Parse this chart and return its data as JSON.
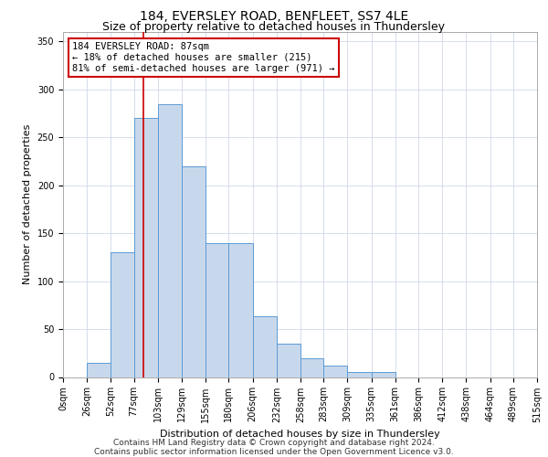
{
  "title": "184, EVERSLEY ROAD, BENFLEET, SS7 4LE",
  "subtitle": "Size of property relative to detached houses in Thundersley",
  "xlabel": "Distribution of detached houses by size in Thundersley",
  "ylabel": "Number of detached properties",
  "footer_line1": "Contains HM Land Registry data © Crown copyright and database right 2024.",
  "footer_line2": "Contains public sector information licensed under the Open Government Licence v3.0.",
  "bar_edges": [
    0,
    26,
    52,
    77,
    103,
    129,
    155,
    180,
    206,
    232,
    258,
    283,
    309,
    335,
    361,
    386,
    412,
    438,
    464,
    489,
    515
  ],
  "bar_heights": [
    0,
    15,
    130,
    270,
    285,
    220,
    140,
    140,
    63,
    35,
    20,
    12,
    5,
    5,
    0,
    0,
    0,
    0,
    0,
    0
  ],
  "bar_color": "#c8d8ec",
  "bar_edge_color": "#5b9bd5",
  "grid_color": "#d0d8e8",
  "vline_x": 87,
  "vline_color": "#cc0000",
  "annotation_text": "184 EVERSLEY ROAD: 87sqm\n← 18% of detached houses are smaller (215)\n81% of semi-detached houses are larger (971) →",
  "annotation_box_color": "#ffffff",
  "annotation_box_edge_color": "#cc0000",
  "ylim": [
    0,
    360
  ],
  "yticks": [
    0,
    50,
    100,
    150,
    200,
    250,
    300,
    350
  ],
  "xtick_labels": [
    "0sqm",
    "26sqm",
    "52sqm",
    "77sqm",
    "103sqm",
    "129sqm",
    "155sqm",
    "180sqm",
    "206sqm",
    "232sqm",
    "258sqm",
    "283sqm",
    "309sqm",
    "335sqm",
    "361sqm",
    "386sqm",
    "412sqm",
    "438sqm",
    "464sqm",
    "489sqm",
    "515sqm"
  ],
  "bg_color": "#ffffff",
  "title_fontsize": 10,
  "subtitle_fontsize": 9,
  "axis_label_fontsize": 8,
  "tick_fontsize": 7,
  "annotation_fontsize": 7.5,
  "footer_fontsize": 6.5
}
